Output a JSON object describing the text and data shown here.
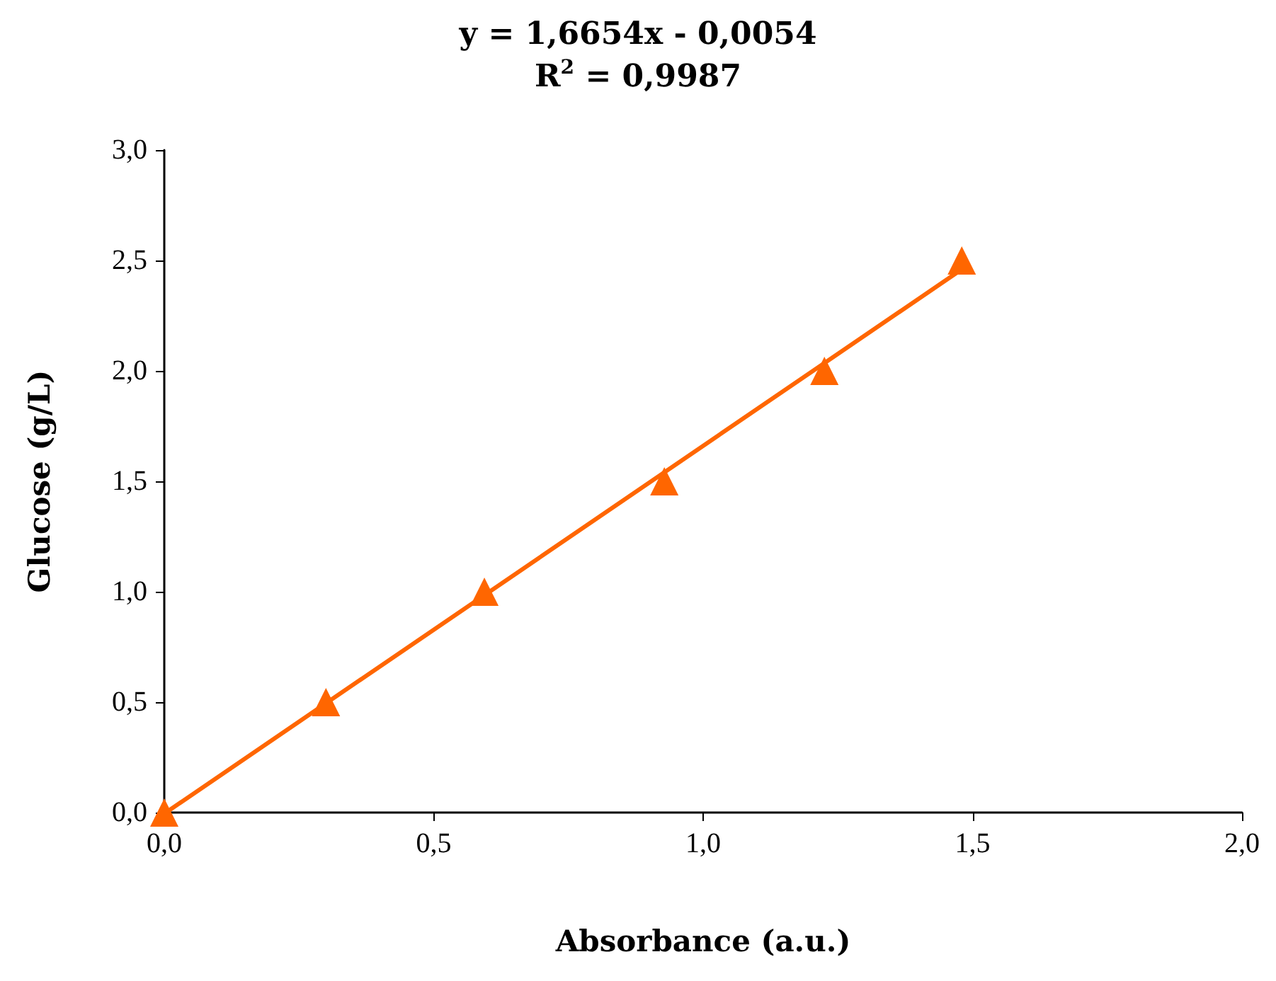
{
  "chart_data": {
    "type": "scatter",
    "title": "y = 1,6654x - 0,0054",
    "subtitle": "R$^{2}$ = 0,9987",
    "xlabel": "Absorbance (a.u.)",
    "ylabel": "Glucose (g/L)",
    "series": [
      {
        "type": "scatter",
        "color": "#ff6600",
        "marker": "triangle",
        "x": [
          0,
          0.3,
          0.594,
          0.928,
          1.225,
          1.48
        ],
        "values": [
          0,
          0.5,
          1.0,
          1.5,
          2.0,
          2.5
        ]
      },
      {
        "type": "line",
        "color": "#ff6600",
        "marker": "none",
        "line_style": "solid",
        "x": [
          0.003,
          1.48
        ],
        "values": [
          0,
          2.46
        ]
      }
    ],
    "xlim": [
      0,
      2
    ],
    "xticks": [
      {
        "value": 0,
        "label": "0,0"
      },
      {
        "value": 0.5,
        "label": "0,5"
      },
      {
        "value": 1,
        "label": "1,0"
      },
      {
        "value": 1.5,
        "label": "1,5"
      },
      {
        "value": 2,
        "label": "2,0"
      }
    ],
    "ylim": [
      0,
      3
    ],
    "yticks": [
      {
        "value": 0,
        "label": "0,0"
      },
      {
        "value": 0.5,
        "label": "0,5"
      },
      {
        "value": 1,
        "label": "1,0"
      },
      {
        "value": 1.5,
        "label": "1,5"
      },
      {
        "value": 2,
        "label": "2,0"
      },
      {
        "value": 2.5,
        "label": "2,5"
      },
      {
        "value": 3,
        "label": "3,0"
      }
    ],
    "grid": false
  }
}
